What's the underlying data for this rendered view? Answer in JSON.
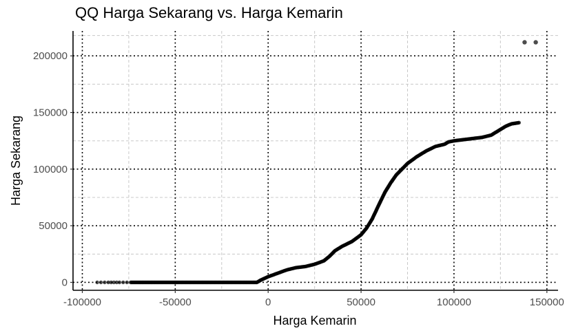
{
  "chart_data": {
    "type": "scatter",
    "title": "QQ Harga Sekarang vs. Harga Kemarin",
    "xlabel": "Harga Kemarin",
    "ylabel": "Harga Sekarang",
    "xlim": [
      -105000,
      156000
    ],
    "ylim": [
      -7000,
      222000
    ],
    "xticks": [
      -100000,
      -50000,
      0,
      50000,
      100000,
      150000
    ],
    "xtick_labels": [
      "-100000",
      "-50000",
      "0",
      "50000",
      "100000",
      "150000"
    ],
    "yticks": [
      0,
      50000,
      100000,
      150000,
      200000
    ],
    "ytick_labels": [
      "0",
      "50000",
      "100000",
      "150000",
      "200000"
    ],
    "grid": true,
    "point_color": "#000000",
    "curve_x": [
      -92000,
      -86000,
      -83000,
      -80000,
      -78000,
      -76000,
      -74000,
      -70000,
      -60000,
      -40000,
      -20000,
      -8000,
      -6000,
      -4000,
      0,
      5000,
      10000,
      15000,
      20000,
      25000,
      30000,
      33000,
      36000,
      40000,
      45000,
      50000,
      53000,
      56000,
      60000,
      63000,
      66000,
      69000,
      72000,
      75000,
      80000,
      85000,
      90000,
      95000,
      97000,
      100000,
      105000,
      110000,
      115000,
      120000,
      125000,
      128000,
      131000,
      135000
    ],
    "curve_y": [
      0,
      0,
      0,
      0,
      0,
      0,
      0,
      0,
      0,
      0,
      0,
      0,
      0,
      2000,
      5000,
      8000,
      11000,
      13000,
      14000,
      16000,
      19000,
      23000,
      28000,
      32000,
      36000,
      42000,
      48000,
      56000,
      70000,
      80000,
      88000,
      95000,
      100000,
      105000,
      111000,
      116000,
      120000,
      122000,
      124000,
      125000,
      126000,
      127000,
      128000,
      130000,
      135000,
      138000,
      140000,
      141000
    ],
    "outliers": [
      {
        "x": 138000,
        "y": 212000
      },
      {
        "x": 144000,
        "y": 212000
      }
    ]
  }
}
